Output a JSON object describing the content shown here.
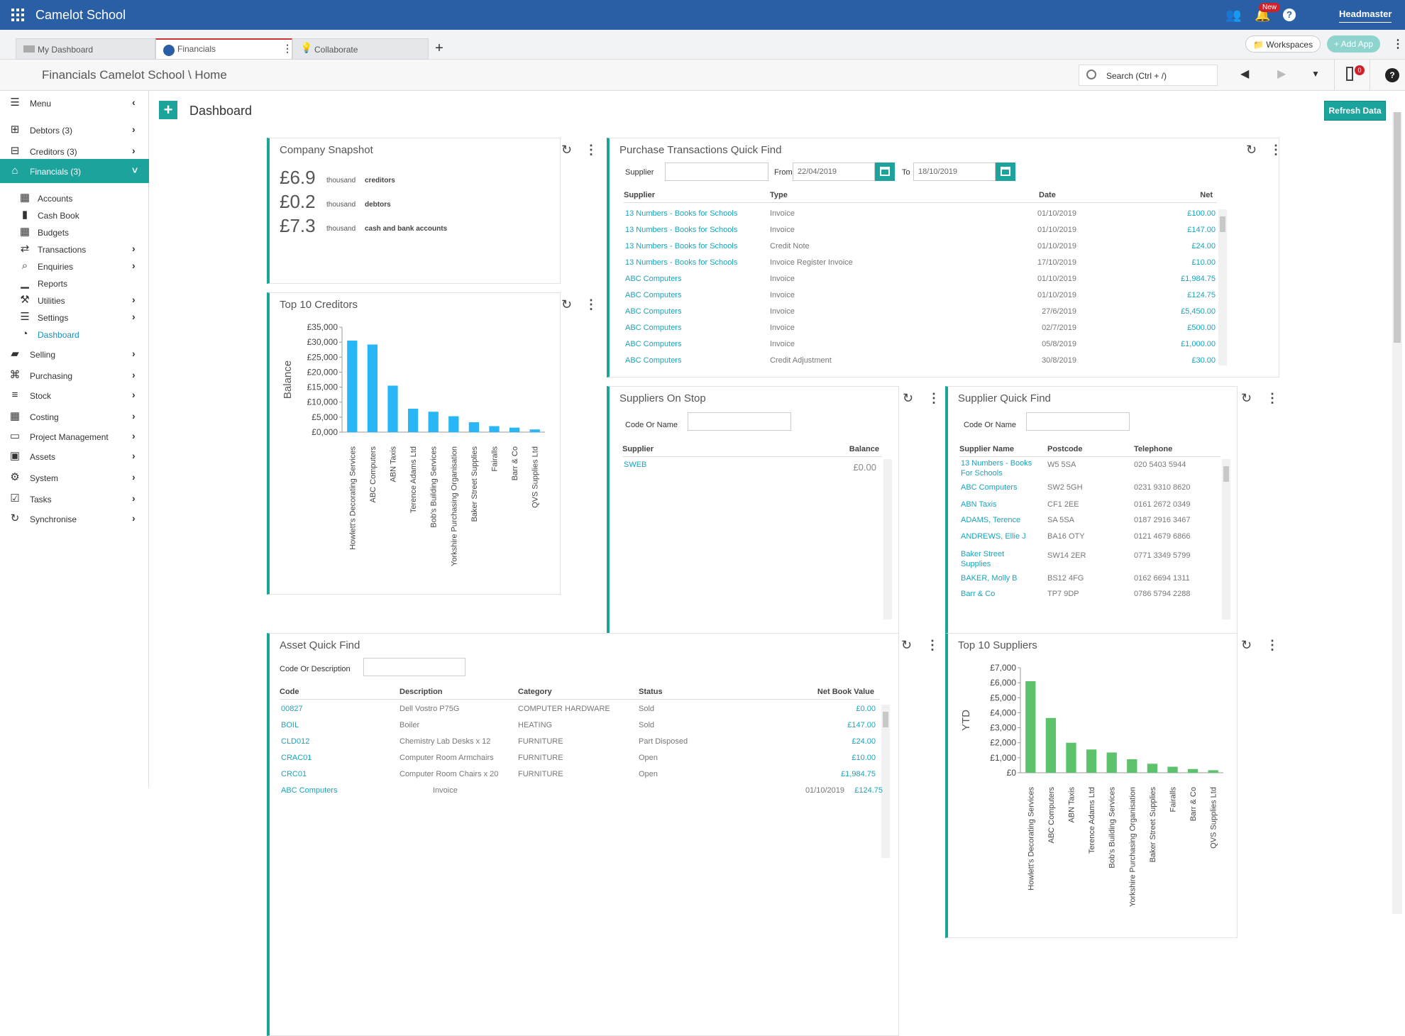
{
  "app": {
    "title": "Camelot School",
    "user": "Headmaster",
    "new_badge": "New"
  },
  "tabs": [
    {
      "label": "My Dashboard"
    },
    {
      "label": "Financials"
    },
    {
      "label": "Collaborate"
    }
  ],
  "tabbar": {
    "workspaces": "Workspaces",
    "add_app": "Add App"
  },
  "breadcrumb": "Financials Camelot School \\ Home",
  "search": {
    "placeholder": "Search (Ctrl + /)",
    "count": "0"
  },
  "sidebar": {
    "items": [
      {
        "label": "Menu",
        "icon": "menu-icon"
      },
      {
        "label": "Debtors (3)",
        "icon": "plus-square-icon"
      },
      {
        "label": "Creditors (3)",
        "icon": "minus-square-icon"
      },
      {
        "label": "Financials (3)",
        "icon": "bank-icon"
      },
      {
        "label": "Accounts",
        "icon": "ledger-icon"
      },
      {
        "label": "Cash Book",
        "icon": "book-icon"
      },
      {
        "label": "Budgets",
        "icon": "grid-icon"
      },
      {
        "label": "Transactions",
        "icon": "transfer-icon"
      },
      {
        "label": "Enquiries",
        "icon": "search-icon"
      },
      {
        "label": "Reports",
        "icon": "chart-icon"
      },
      {
        "label": "Utilities",
        "icon": "wrench-icon"
      },
      {
        "label": "Settings",
        "icon": "list-icon"
      },
      {
        "label": "Dashboard",
        "icon": "dashboard-icon"
      },
      {
        "label": "Selling",
        "icon": "bag-icon"
      },
      {
        "label": "Purchasing",
        "icon": "basket-icon"
      },
      {
        "label": "Stock",
        "icon": "stock-icon"
      },
      {
        "label": "Costing",
        "icon": "table-icon"
      },
      {
        "label": "Project Management",
        "icon": "folder-icon"
      },
      {
        "label": "Assets",
        "icon": "safe-icon"
      },
      {
        "label": "System",
        "icon": "gear-icon"
      },
      {
        "label": "Tasks",
        "icon": "calendar-check-icon"
      },
      {
        "label": "Synchronise",
        "icon": "sync-icon"
      }
    ]
  },
  "dashboard": {
    "title": "Dashboard",
    "refresh": "Refresh Data"
  },
  "snapshot": {
    "title": "Company Snapshot",
    "rows": [
      {
        "value": "£6.9",
        "unit": "thousand",
        "label": "creditors"
      },
      {
        "value": "£0.2",
        "unit": "thousand",
        "label": "debtors"
      },
      {
        "value": "£7.3",
        "unit": "thousand",
        "label": "cash and bank accounts"
      }
    ]
  },
  "purchase": {
    "title": "Purchase Transactions Quick Find",
    "supplier_label": "Supplier",
    "from_label": "From",
    "from": "22/04/2019",
    "to_label": "To",
    "to": "18/10/2019",
    "headers": [
      "Supplier",
      "Type",
      "Date",
      "Net"
    ],
    "rows": [
      [
        "13 Numbers - Books for Schools",
        "Invoice",
        "01/10/2019",
        "£100.00"
      ],
      [
        "13 Numbers - Books for Schools",
        "Invoice",
        "01/10/2019",
        "£147.00"
      ],
      [
        "13 Numbers - Books for Schools",
        "Credit Note",
        "01/10/2019",
        "£24.00"
      ],
      [
        "13 Numbers - Books for Schools",
        "Invoice Register Invoice",
        "17/10/2019",
        "£10.00"
      ],
      [
        "ABC Computers",
        "Invoice",
        "01/10/2019",
        "£1,984.75"
      ],
      [
        "ABC Computers",
        "Invoice",
        "01/10/2019",
        "£124.75"
      ],
      [
        "ABC Computers",
        "Invoice",
        "27/6/2019",
        "£5,450.00"
      ],
      [
        "ABC Computers",
        "Invoice",
        "02/7/2019",
        "£500.00"
      ],
      [
        "ABC Computers",
        "Invoice",
        "05/8/2019",
        "£1,000.00"
      ],
      [
        "ABC Computers",
        "Credit Adjustment",
        "30/8/2019",
        "£30.00"
      ]
    ]
  },
  "stop": {
    "title": "Suppliers On Stop",
    "code_label": "Code Or Name",
    "headers": [
      "Supplier",
      "Balance"
    ],
    "rows": [
      [
        "SWEB",
        "£0.00"
      ]
    ]
  },
  "sqf": {
    "title": "Supplier Quick Find",
    "code_label": "Code Or Name",
    "headers": [
      "Supplier Name",
      "Postcode",
      "Telephone"
    ],
    "rows": [
      [
        "13 Numbers - Books",
        "For Schools",
        "W5 5SA",
        "020 5403 5944"
      ],
      [
        "ABC Computers",
        "",
        "SW2 5GH",
        "0231 9310 8620"
      ],
      [
        "ABN Taxis",
        "",
        "CF1 2EE",
        "0161 2672 0349"
      ],
      [
        "ADAMS, Terence",
        "",
        "SA 5SA",
        "0187 2916 3467"
      ],
      [
        "ANDREWS, Ellie J",
        "",
        "BA16 OTY",
        "0121 4679 6866"
      ],
      [
        "Baker Street",
        "Supplies",
        "SW14 2ER",
        "0771 3349 5799"
      ],
      [
        "BAKER, Molly B",
        "",
        "BS12 4FG",
        "0162 6694 1311"
      ],
      [
        "Barr & Co",
        "",
        "TP7 9DP",
        "0786 5794 2288"
      ]
    ]
  },
  "asset": {
    "title": "Asset Quick Find",
    "code_label": "Code Or Description",
    "headers": [
      "Code",
      "Description",
      "Category",
      "Status",
      "Net Book Value"
    ],
    "rows": [
      [
        "00827",
        "Dell Vostro P75G",
        "COMPUTER HARDWARE",
        "Sold",
        "£0.00"
      ],
      [
        "BOIL",
        "Boiler",
        "HEATING",
        "Sold",
        "£147.00"
      ],
      [
        "CLD012",
        "Chemistry Lab Desks x 12",
        "FURNITURE",
        "Part Disposed",
        "£24.00"
      ],
      [
        "CRAC01",
        "Computer Room Armchairs",
        "FURNITURE",
        "Open",
        "£10.00"
      ],
      [
        "CRC01",
        "Computer Room Chairs x 20",
        "FURNITURE",
        "Open",
        "£1,984.75"
      ]
    ],
    "extra_row": [
      "ABC Computers",
      "Invoice",
      "01/10/2019",
      "£124.75"
    ]
  },
  "creditors": {
    "title": "Top 10 Creditors"
  },
  "suppliers": {
    "title": "Top 10 Suppliers"
  },
  "chart_data": [
    {
      "type": "bar",
      "title": "Top 10 Creditors",
      "ylabel": "Balance",
      "xlabel": "",
      "ylim": [
        0,
        35000
      ],
      "yticks": [
        "£0,000",
        "£5,000",
        "£10,000",
        "£15,000",
        "£20,000",
        "£25,000",
        "£30,000",
        "£35,000"
      ],
      "categories": [
        "Howlett's Decorating Services",
        "ABC Computers",
        "ABN Taxis",
        "Terence Adams Ltd",
        "Bob's Building Services",
        "Yorkshire Purchasing Organisation",
        "Baker Street Supplies",
        "Fairalls",
        "Barr & Co",
        "QVS Supplies Ltd"
      ],
      "values": [
        30500,
        29200,
        15500,
        7800,
        6800,
        5300,
        3300,
        2000,
        1500,
        900
      ],
      "color": "#29b6f6"
    },
    {
      "type": "bar",
      "title": "Top 10 Suppliers",
      "ylabel": "YTD",
      "xlabel": "",
      "ylim": [
        0,
        7000
      ],
      "yticks": [
        "£0",
        "£1,000",
        "£2,000",
        "£3,000",
        "£4,000",
        "£5,000",
        "£6,000",
        "£7,000"
      ],
      "categories": [
        "Howlett's Decorating Services",
        "ABC Computers",
        "ABN Taxis",
        "Terence Adams Ltd",
        "Bob's Building Services",
        "Yorkshire Purchasing Organisation",
        "Baker Street Supplies",
        "Fairalls",
        "Barr & Co",
        "QVS Supplies Ltd"
      ],
      "values": [
        6100,
        3650,
        2000,
        1550,
        1350,
        900,
        600,
        400,
        250,
        170
      ],
      "color": "#5cc26b"
    }
  ]
}
